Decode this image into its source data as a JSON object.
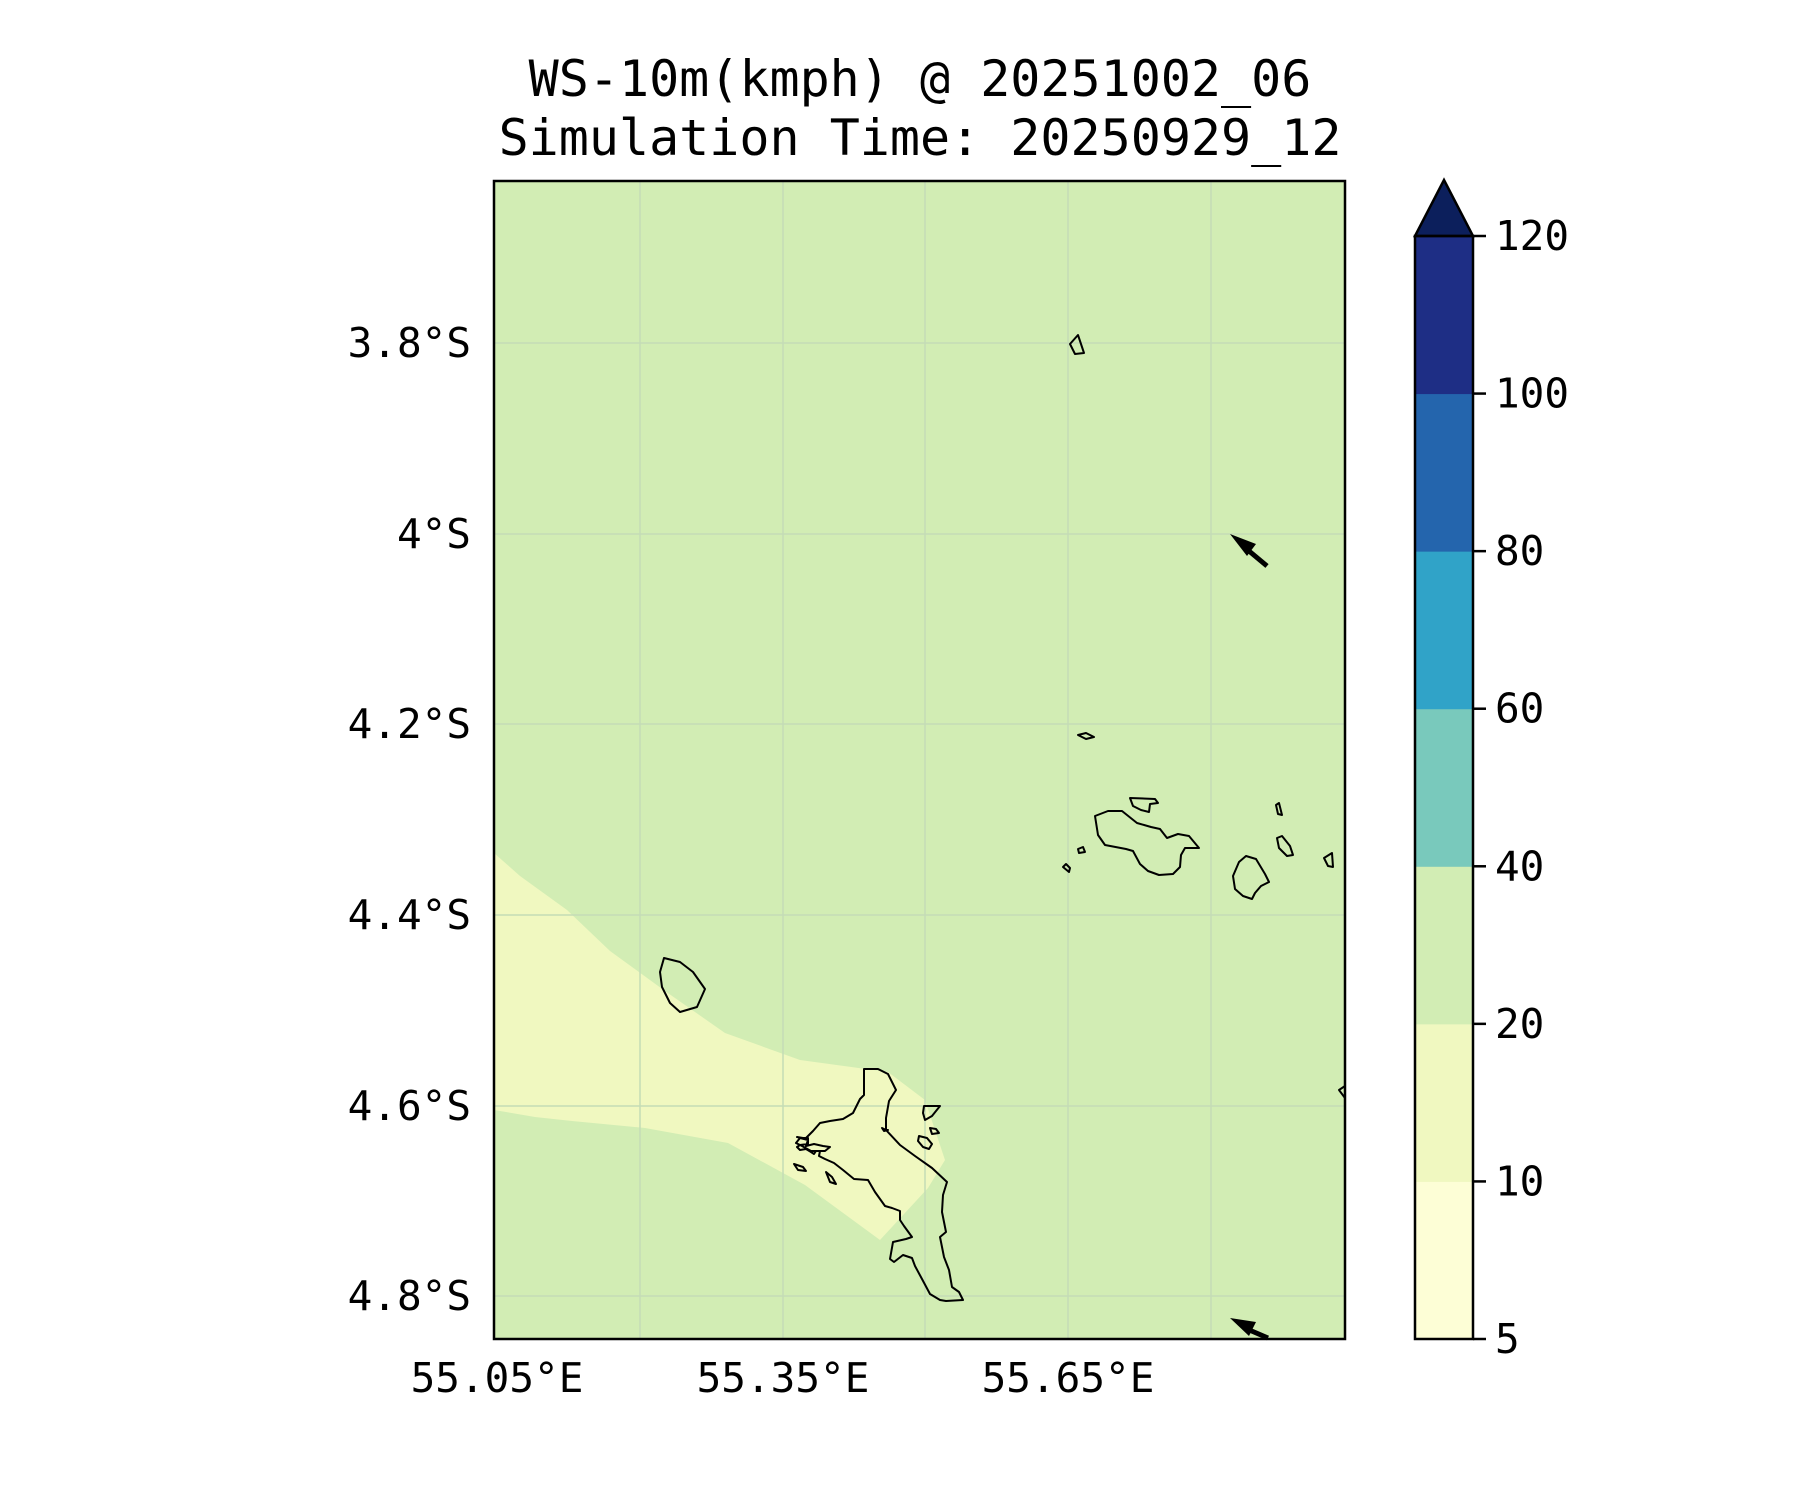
{
  "title": {
    "line1": "WS-10m(kmph) @ 20251002_06",
    "line2": "Simulation Time: 20250929_12"
  },
  "axes": {
    "lon_ticks": [
      "55.05°E",
      "55.35°E",
      "55.65°E"
    ],
    "lat_ticks": [
      "3.8°S",
      "4°S",
      "4.2°S",
      "4.4°S",
      "4.6°S",
      "4.8°S"
    ]
  },
  "colorbar": {
    "tick_labels": [
      "5",
      "10",
      "20",
      "40",
      "60",
      "80",
      "100",
      "120"
    ],
    "levels": [
      5,
      10,
      20,
      40,
      60,
      80,
      100,
      120
    ],
    "colors": [
      "#fdfed6",
      "#f0f8c0",
      "#d2edb4",
      "#79c9bc",
      "#30a3c8",
      "#2465ad",
      "#1e2e85"
    ],
    "extend_color": "#0c1f5c",
    "extend": "max"
  },
  "map": {
    "ocean_fill": "#d2edb4",
    "calm_fill": "#f0f8c0",
    "coastline_color": "#000000",
    "wind_arrows": [
      "north-west",
      "west-north-west"
    ]
  }
}
